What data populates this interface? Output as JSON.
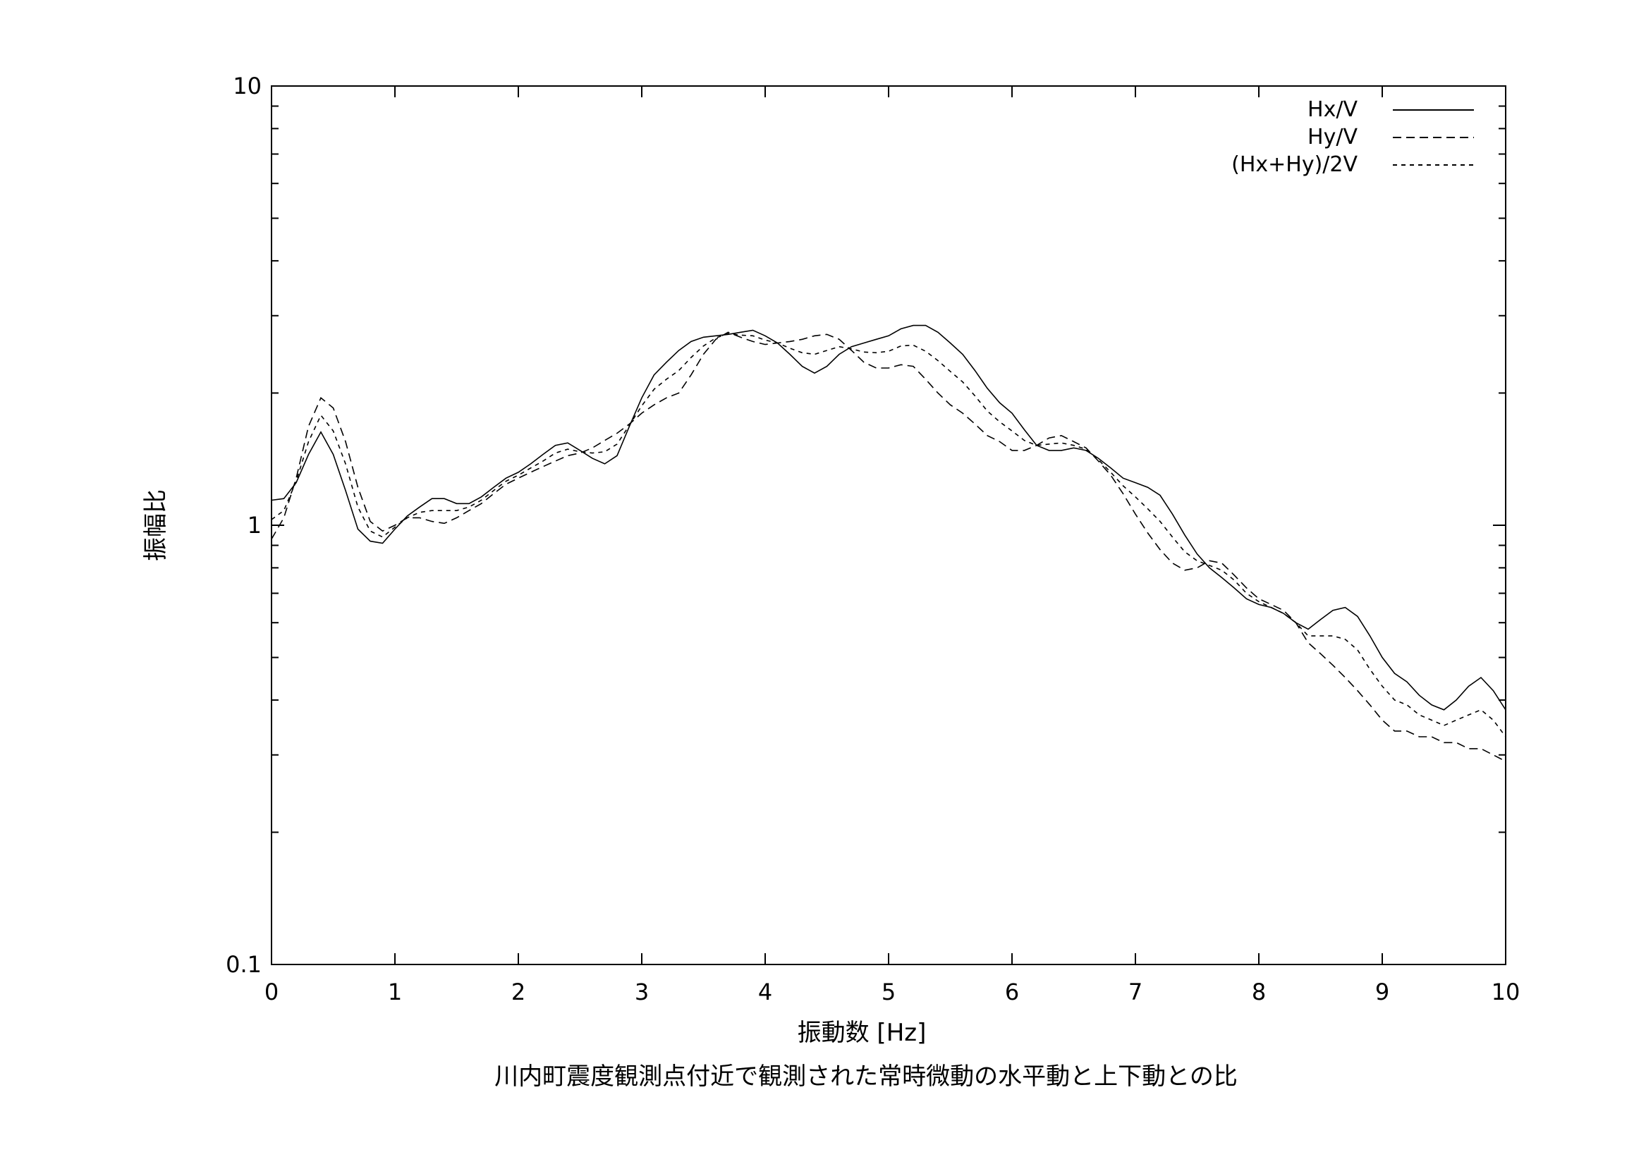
{
  "chart_data": {
    "type": "line",
    "caption": "川内町震度観測点付近で観測された常時微動の水平動と上下動との比",
    "xlabel": "振動数 [Hz]",
    "ylabel": "振幅比",
    "xlim": [
      0,
      10
    ],
    "ylim": [
      0.1,
      10
    ],
    "y_scale": "log",
    "x_ticks": [
      "0",
      "1",
      "2",
      "3",
      "4",
      "5",
      "6",
      "7",
      "8",
      "9",
      "10"
    ],
    "x_tick_values": [
      0,
      1,
      2,
      3,
      4,
      5,
      6,
      7,
      8,
      9,
      10
    ],
    "y_ticks": [
      "0.1",
      "1",
      "10"
    ],
    "y_tick_values": [
      0.1,
      1,
      10
    ],
    "grid": false,
    "legend_position": "top-right",
    "x": [
      0,
      0.1,
      0.2,
      0.3,
      0.4,
      0.5,
      0.6,
      0.7,
      0.8,
      0.9,
      1.0,
      1.1,
      1.2,
      1.3,
      1.4,
      1.5,
      1.6,
      1.7,
      1.8,
      1.9,
      2.0,
      2.1,
      2.2,
      2.3,
      2.4,
      2.5,
      2.6,
      2.7,
      2.8,
      2.9,
      3.0,
      3.1,
      3.2,
      3.3,
      3.4,
      3.5,
      3.6,
      3.7,
      3.8,
      3.9,
      4.0,
      4.1,
      4.2,
      4.3,
      4.4,
      4.5,
      4.6,
      4.7,
      4.8,
      4.9,
      5.0,
      5.1,
      5.2,
      5.3,
      5.4,
      5.5,
      5.6,
      5.7,
      5.8,
      5.9,
      6.0,
      6.1,
      6.2,
      6.3,
      6.4,
      6.5,
      6.6,
      6.7,
      6.8,
      6.9,
      7.0,
      7.1,
      7.2,
      7.3,
      7.4,
      7.5,
      7.6,
      7.7,
      7.8,
      7.9,
      8.0,
      8.1,
      8.2,
      8.3,
      8.4,
      8.5,
      8.6,
      8.7,
      8.8,
      8.9,
      9.0,
      9.1,
      9.2,
      9.3,
      9.4,
      9.5,
      9.6,
      9.7,
      9.8,
      9.9,
      10.0
    ],
    "series": [
      {
        "name": "Hx/V",
        "dash": "none",
        "values": [
          1.14,
          1.15,
          1.25,
          1.45,
          1.63,
          1.45,
          1.2,
          0.98,
          0.92,
          0.91,
          0.98,
          1.05,
          1.1,
          1.15,
          1.15,
          1.12,
          1.12,
          1.16,
          1.22,
          1.28,
          1.32,
          1.38,
          1.45,
          1.52,
          1.54,
          1.48,
          1.42,
          1.38,
          1.44,
          1.68,
          1.95,
          2.2,
          2.35,
          2.5,
          2.62,
          2.68,
          2.7,
          2.72,
          2.75,
          2.78,
          2.7,
          2.6,
          2.45,
          2.3,
          2.22,
          2.3,
          2.45,
          2.55,
          2.6,
          2.65,
          2.7,
          2.8,
          2.85,
          2.85,
          2.75,
          2.6,
          2.45,
          2.25,
          2.05,
          1.9,
          1.8,
          1.65,
          1.52,
          1.48,
          1.48,
          1.5,
          1.48,
          1.42,
          1.35,
          1.28,
          1.25,
          1.22,
          1.17,
          1.06,
          0.95,
          0.86,
          0.8,
          0.76,
          0.72,
          0.68,
          0.66,
          0.65,
          0.63,
          0.6,
          0.58,
          0.61,
          0.64,
          0.65,
          0.62,
          0.56,
          0.5,
          0.46,
          0.44,
          0.41,
          0.39,
          0.38,
          0.4,
          0.43,
          0.45,
          0.42,
          0.38
        ]
      },
      {
        "name": "Hy/V",
        "dash": "12,7",
        "values": [
          0.93,
          1.04,
          1.28,
          1.68,
          1.95,
          1.85,
          1.55,
          1.22,
          1.02,
          0.97,
          1.0,
          1.04,
          1.04,
          1.02,
          1.01,
          1.04,
          1.08,
          1.12,
          1.18,
          1.24,
          1.28,
          1.32,
          1.36,
          1.4,
          1.44,
          1.46,
          1.5,
          1.56,
          1.62,
          1.7,
          1.8,
          1.88,
          1.95,
          2.0,
          2.2,
          2.45,
          2.65,
          2.75,
          2.68,
          2.62,
          2.58,
          2.6,
          2.62,
          2.65,
          2.7,
          2.72,
          2.65,
          2.5,
          2.35,
          2.28,
          2.28,
          2.32,
          2.3,
          2.15,
          2.0,
          1.88,
          1.8,
          1.7,
          1.6,
          1.55,
          1.48,
          1.48,
          1.52,
          1.58,
          1.6,
          1.55,
          1.5,
          1.4,
          1.3,
          1.18,
          1.06,
          0.96,
          0.88,
          0.82,
          0.79,
          0.8,
          0.83,
          0.82,
          0.77,
          0.72,
          0.68,
          0.66,
          0.64,
          0.6,
          0.54,
          0.51,
          0.48,
          0.45,
          0.42,
          0.39,
          0.36,
          0.34,
          0.34,
          0.33,
          0.33,
          0.32,
          0.32,
          0.31,
          0.31,
          0.3,
          0.29
        ]
      },
      {
        "name": "(Hx+Hy)/2V",
        "dash": "6,6",
        "values": [
          1.03,
          1.08,
          1.26,
          1.55,
          1.78,
          1.64,
          1.38,
          1.1,
          0.97,
          0.94,
          0.99,
          1.04,
          1.07,
          1.08,
          1.08,
          1.08,
          1.1,
          1.14,
          1.2,
          1.26,
          1.3,
          1.35,
          1.4,
          1.46,
          1.49,
          1.47,
          1.46,
          1.47,
          1.53,
          1.69,
          1.87,
          2.04,
          2.15,
          2.25,
          2.41,
          2.56,
          2.67,
          2.73,
          2.71,
          2.7,
          2.64,
          2.6,
          2.53,
          2.47,
          2.45,
          2.5,
          2.55,
          2.52,
          2.48,
          2.47,
          2.49,
          2.56,
          2.57,
          2.49,
          2.37,
          2.24,
          2.12,
          1.97,
          1.82,
          1.72,
          1.64,
          1.56,
          1.52,
          1.53,
          1.54,
          1.52,
          1.49,
          1.41,
          1.32,
          1.23,
          1.16,
          1.09,
          1.02,
          0.94,
          0.87,
          0.83,
          0.81,
          0.79,
          0.75,
          0.7,
          0.67,
          0.65,
          0.63,
          0.6,
          0.56,
          0.56,
          0.56,
          0.55,
          0.52,
          0.47,
          0.43,
          0.4,
          0.39,
          0.37,
          0.36,
          0.35,
          0.36,
          0.37,
          0.38,
          0.36,
          0.33
        ]
      }
    ]
  }
}
